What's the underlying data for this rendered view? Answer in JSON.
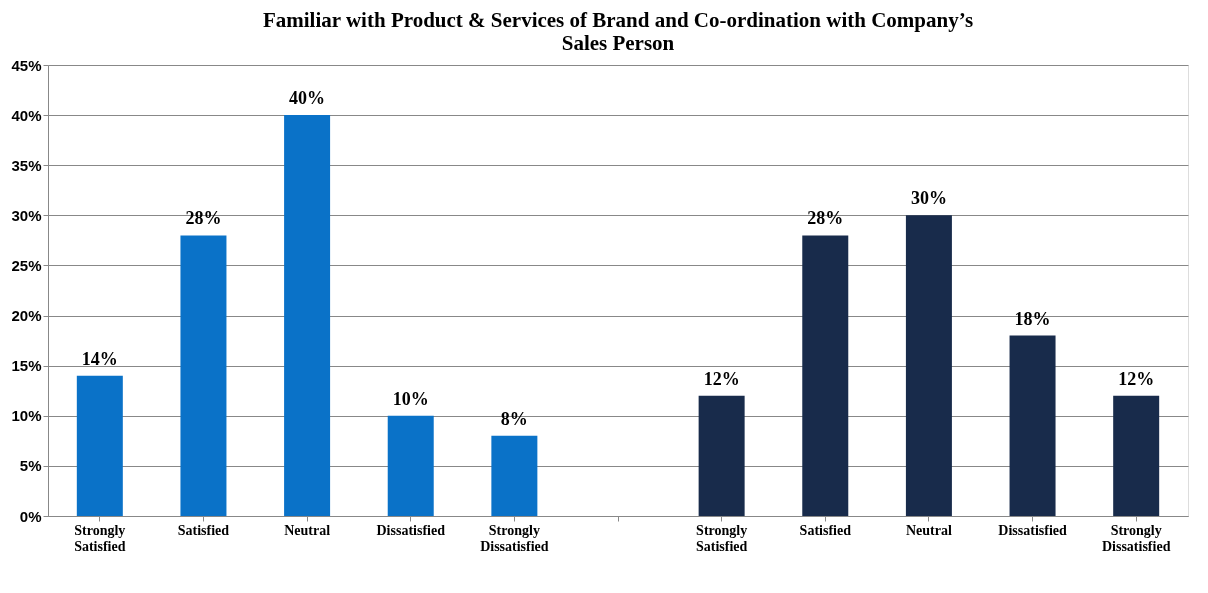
{
  "chart_data": {
    "type": "bar",
    "title": "Familiar with Product & Services of Brand and Co-ordination with Company’s Sales Person",
    "categories": [
      "Strongly Satisfied",
      "Satisfied",
      "Neutral",
      "Dissatisfied",
      "Strongly Dissatisfied",
      null,
      "Strongly Satisfied",
      "Satisfied",
      "Neutral",
      "Dissatisfied",
      "Strongly Dissatisfied"
    ],
    "series": [
      {
        "color": "#0a72c8",
        "values": [
          14,
          28,
          40,
          10,
          8,
          null,
          null,
          null,
          null,
          null,
          null
        ],
        "value_labels": [
          "14%",
          "28%",
          "40%",
          "10%",
          "8%",
          null,
          null,
          null,
          null,
          null,
          null
        ]
      },
      {
        "color": "#182b4b",
        "values": [
          null,
          null,
          null,
          null,
          null,
          null,
          12,
          28,
          30,
          18,
          12
        ],
        "value_labels": [
          null,
          null,
          null,
          null,
          null,
          null,
          "12%",
          "28%",
          "30%",
          "18%",
          "12%"
        ]
      }
    ],
    "ylim": [
      0,
      45
    ],
    "yticks": [
      {
        "value": 0,
        "label": "0%"
      },
      {
        "value": 5,
        "label": "5%"
      },
      {
        "value": 10,
        "label": "10%"
      },
      {
        "value": 15,
        "label": "15%"
      },
      {
        "value": 20,
        "label": "20%"
      },
      {
        "value": 25,
        "label": "25%"
      },
      {
        "value": 30,
        "label": "30%"
      },
      {
        "value": 35,
        "label": "35%"
      },
      {
        "value": 40,
        "label": "40%"
      },
      {
        "value": 45,
        "label": "45%"
      }
    ],
    "grid": "y"
  }
}
